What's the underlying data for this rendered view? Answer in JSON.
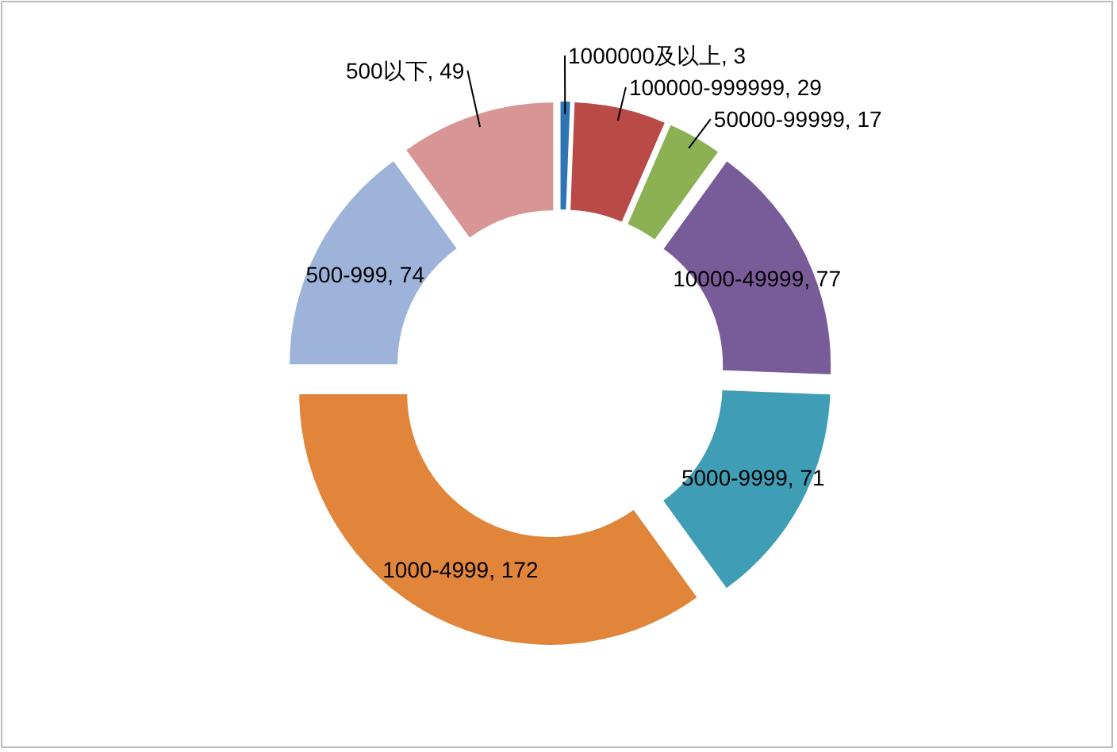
{
  "chart_data": {
    "type": "donut",
    "categories": [
      null,
      null,
      null,
      null,
      null,
      null,
      null,
      null
    ],
    "values": [
      3,
      29,
      17,
      77,
      71,
      172,
      74,
      49
    ],
    "value_labels": [
      "1000000及以上, 3",
      "100000-999999, 29",
      "50000-99999, 17",
      "10000-49999, 77",
      "5000-9999, 71",
      "1000-4999, 172",
      "500-999, 74",
      "500以下, 49"
    ],
    "colors": [
      "#2e75b6",
      "#b94a48",
      "#8cb153",
      "#7a5b9a",
      "#3f9db5",
      "#e0853a",
      "#9db3d9",
      "#d79593"
    ],
    "legend": false
  }
}
